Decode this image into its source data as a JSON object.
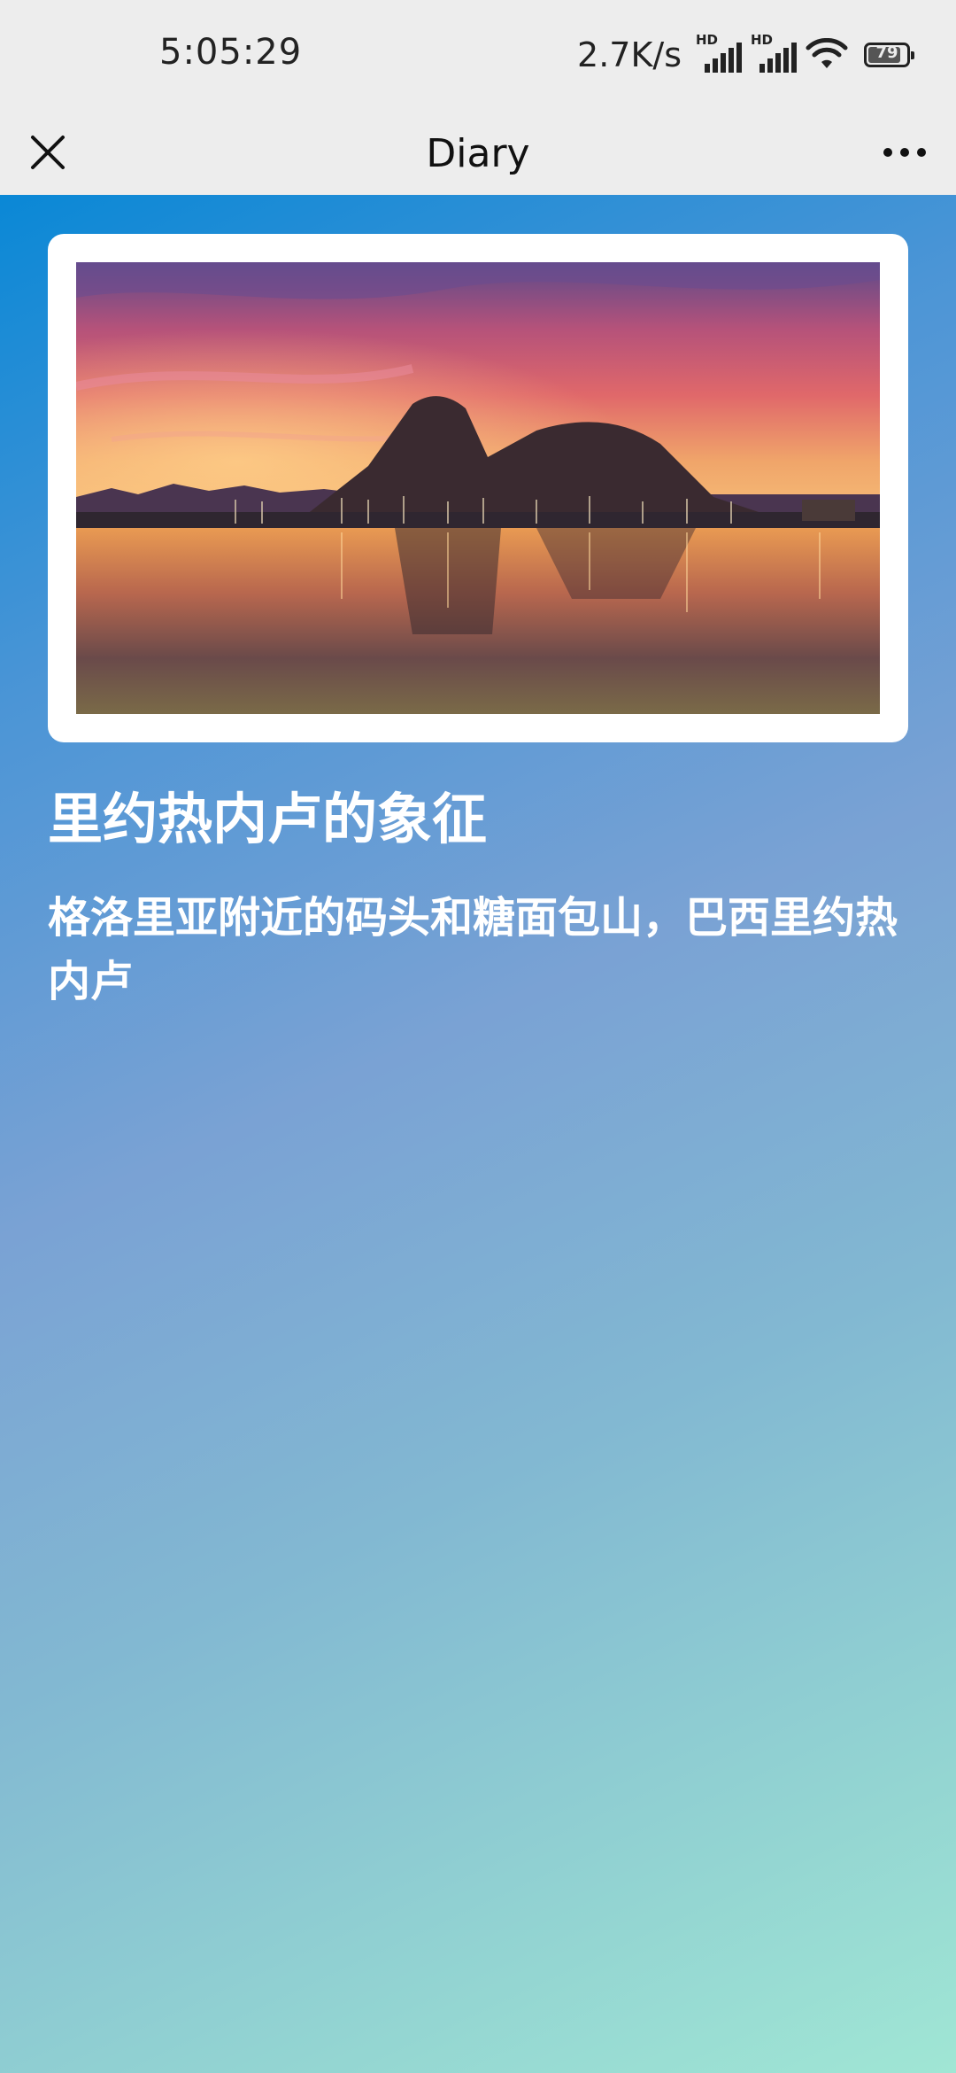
{
  "status_bar": {
    "time": "5:05:29",
    "net_speed": "2.7K/s",
    "signal_1_badge": "HD",
    "signal_2_badge": "HD",
    "battery_level": "79"
  },
  "nav": {
    "title": "Diary",
    "close_icon": "close-icon",
    "more_icon": "more-icon"
  },
  "diary": {
    "title": "里约热内卢的象征",
    "caption": "格洛里亚附近的码头和糖面包山，巴西里约热内卢"
  },
  "colors": {
    "bar_background": "#ededed",
    "gradient_start": "#0a88d6",
    "gradient_end": "#a0e6d4",
    "text_on_gradient": "#ffffff"
  }
}
